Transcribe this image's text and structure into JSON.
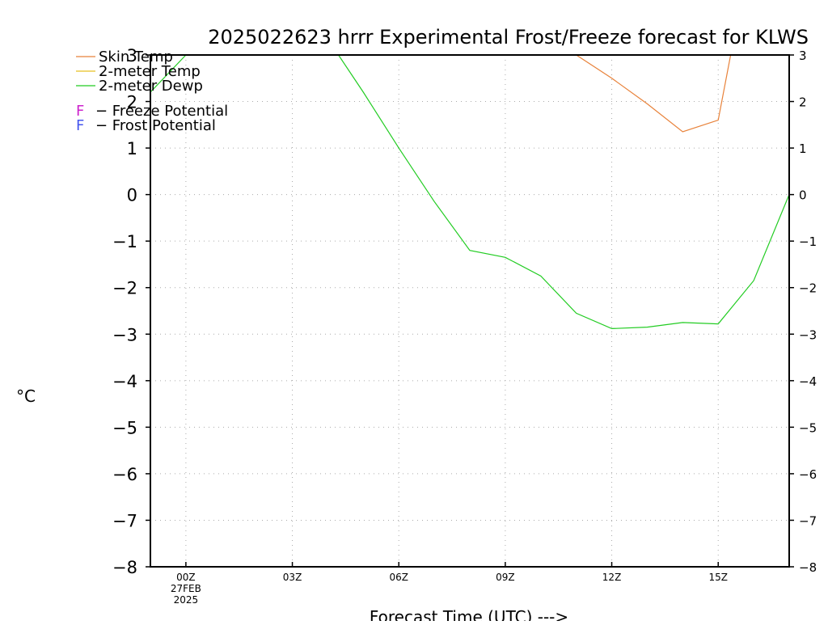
{
  "chart_data": {
    "type": "line",
    "title": "2025022623 hrrr Experimental Frost/Freeze forecast for KLWS",
    "xlabel": "Forecast Time (UTC) --->",
    "ylabel": "°C",
    "ylim": [
      -8,
      3
    ],
    "yticks": [
      3,
      2,
      1,
      0,
      -1,
      -2,
      -3,
      -4,
      -5,
      -6,
      -7,
      -8
    ],
    "ytick_labels": [
      "3",
      "2",
      "1",
      "0",
      "−1",
      "−2",
      "−3",
      "−4",
      "−5",
      "−6",
      "−7",
      "−8"
    ],
    "xlim": [
      -1,
      17
    ],
    "xticks": [
      {
        "value": 0,
        "label": "00Z",
        "sub": [
          "27FEB",
          "2025"
        ]
      },
      {
        "value": 3,
        "label": "03Z",
        "sub": []
      },
      {
        "value": 6,
        "label": "06Z",
        "sub": []
      },
      {
        "value": 9,
        "label": "09Z",
        "sub": []
      },
      {
        "value": 12,
        "label": "12Z",
        "sub": []
      },
      {
        "value": 15,
        "label": "15Z",
        "sub": []
      }
    ],
    "grid": true,
    "legend_position": "top-left",
    "series": [
      {
        "name": "Skin Temp",
        "color": "#e8823a",
        "x": [
          11.0,
          12.0,
          13.0,
          14.0,
          15.0,
          15.35
        ],
        "y": [
          3.0,
          2.5,
          1.95,
          1.35,
          1.6,
          3.0
        ]
      },
      {
        "name": "2-meter Temp",
        "color": "#e8c020",
        "x": [],
        "y": []
      },
      {
        "name": "2-meter Dewp",
        "color": "#22cc22",
        "x": [
          -1.0,
          0.0,
          4.3,
          5.0,
          6.0,
          7.0,
          8.0,
          9.0,
          10.0,
          11.0,
          12.0,
          13.0,
          14.0,
          15.0,
          16.0,
          17.0
        ],
        "y": [
          2.2,
          3.0,
          3.0,
          2.2,
          1.0,
          -0.15,
          -1.2,
          -1.35,
          -1.75,
          -2.55,
          -2.88,
          -2.85,
          -2.75,
          -2.78,
          -1.85,
          0.0
        ]
      }
    ],
    "potential_legend": [
      {
        "symbol": "F",
        "text": "− Freeze Potential",
        "color": "#cc22cc"
      },
      {
        "symbol": "F",
        "text": "− Frost Potential",
        "color": "#4455ee"
      }
    ]
  }
}
